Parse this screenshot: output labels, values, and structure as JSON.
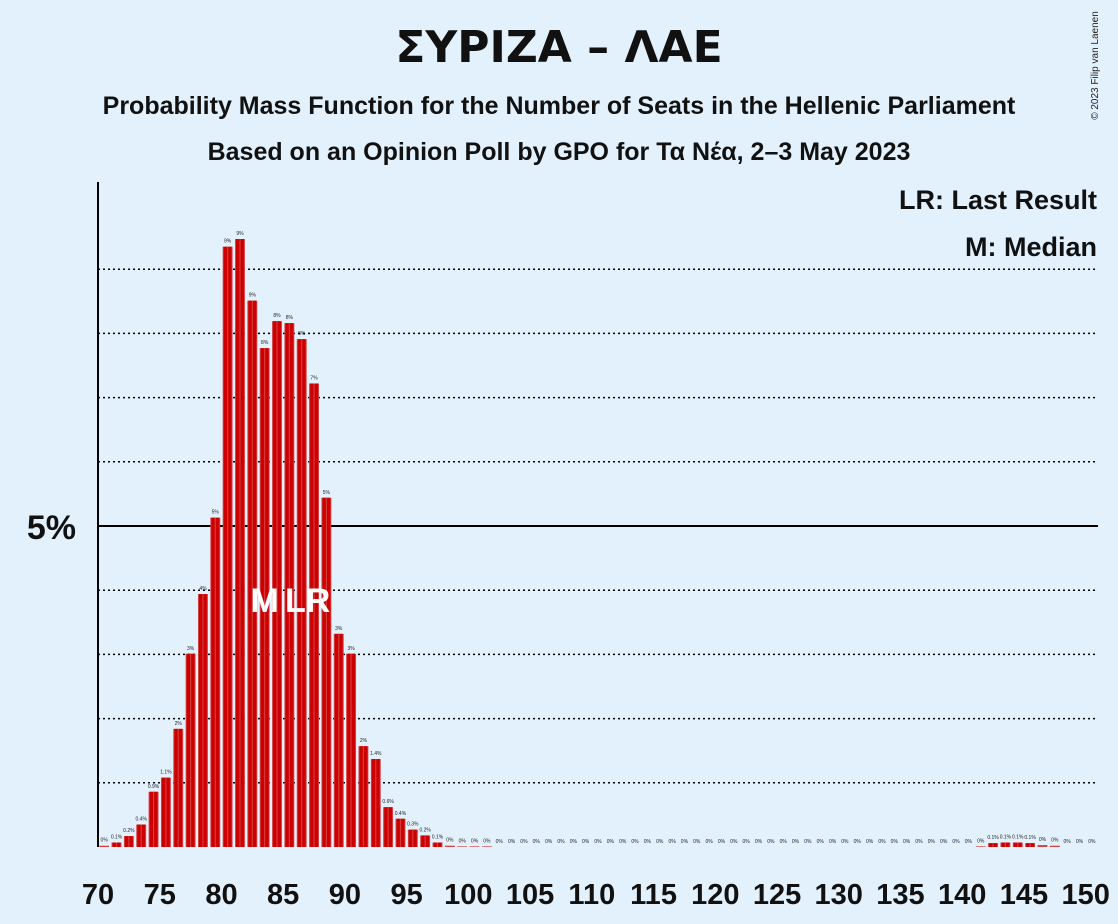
{
  "title": "ΣΥΡΙΖΑ – ΛΑΕ",
  "subtitle1": "Probability Mass Function for the Number of Seats in the Hellenic Parliament",
  "subtitle2": "Based on an Opinion Poll by GPO for Τα Νέα, 2–3 May 2023",
  "copyright": "© 2023 Filip van Laenen",
  "chart_data": {
    "type": "bar",
    "x": [
      70,
      71,
      72,
      73,
      74,
      75,
      76,
      77,
      78,
      79,
      80,
      81,
      82,
      83,
      84,
      85,
      86,
      87,
      88,
      89,
      90,
      91,
      92,
      93,
      94,
      95,
      96,
      97,
      98,
      99,
      100,
      101,
      102,
      103,
      104,
      105,
      106,
      107,
      108,
      109,
      110,
      111,
      112,
      113,
      114,
      115,
      116,
      117,
      118,
      119,
      120,
      121,
      122,
      123,
      124,
      125,
      126,
      127,
      128,
      129,
      130,
      131,
      132,
      133,
      134,
      135,
      136,
      137,
      138,
      139,
      140,
      141,
      142,
      143,
      144,
      145,
      146,
      147,
      148,
      149,
      150
    ],
    "values": [
      0,
      0.1,
      0.2,
      0.4,
      0.9,
      1.1,
      2,
      3,
      4,
      5,
      9,
      9,
      9,
      8,
      8,
      8,
      8,
      7,
      5,
      3,
      3,
      2,
      1.4,
      0.6,
      0.4,
      0.3,
      0.2,
      0.1,
      0,
      0,
      0,
      0,
      0,
      0,
      0,
      0,
      0,
      0,
      0,
      0,
      0,
      0,
      0,
      0,
      0,
      0,
      0,
      0,
      0,
      0,
      0,
      0,
      0,
      0,
      0,
      0,
      0,
      0,
      0,
      0,
      0,
      0,
      0,
      0,
      0,
      0,
      0,
      0,
      0,
      0,
      0,
      0,
      0.1,
      0.1,
      0.1,
      0.1,
      0,
      0,
      0,
      0,
      0
    ],
    "plot_values": [
      0.02,
      0.07,
      0.17,
      0.35,
      0.86,
      1.08,
      1.84,
      3.01,
      3.94,
      5.13,
      9.35,
      9.47,
      8.51,
      7.77,
      8.19,
      8.16,
      7.91,
      7.22,
      5.44,
      3.32,
      3.01,
      1.57,
      1.37,
      0.62,
      0.44,
      0.27,
      0.18,
      0.07,
      0.02,
      0.01,
      0.01,
      0.01,
      0,
      0,
      0,
      0,
      0,
      0,
      0,
      0,
      0,
      0,
      0,
      0,
      0,
      0,
      0,
      0,
      0,
      0,
      0,
      0,
      0,
      0,
      0,
      0,
      0,
      0,
      0,
      0,
      0,
      0,
      0,
      0,
      0,
      0,
      0,
      0,
      0,
      0,
      0,
      0.01,
      0.06,
      0.07,
      0.07,
      0.06,
      0.03,
      0.02,
      0,
      0,
      0
    ],
    "bar_labels": [
      "0%",
      "0.1%",
      "0.2%",
      "0.4%",
      "0.9%",
      "1.1%",
      "2%",
      "3%",
      "4%",
      "5%",
      "9%",
      "9%",
      "9%",
      "8%",
      "8%",
      "8%",
      "8%",
      "7%",
      "5%",
      "3%",
      "3%",
      "2%",
      "1.4%",
      "0.6%",
      "0.4%",
      "0.3%",
      "0.2%",
      "0.1%",
      "0%",
      "0%",
      "0%",
      "0%",
      "0%",
      "0%",
      "0%",
      "0%",
      "0%",
      "0%",
      "0%",
      "0%",
      "0%",
      "0%",
      "0%",
      "0%",
      "0%",
      "0%",
      "0%",
      "0%",
      "0%",
      "0%",
      "0%",
      "0%",
      "0%",
      "0%",
      "0%",
      "0%",
      "0%",
      "0%",
      "0%",
      "0%",
      "0%",
      "0%",
      "0%",
      "0%",
      "0%",
      "0%",
      "0%",
      "0%",
      "0%",
      "0%",
      "0%",
      "0%",
      "0.1%",
      "0.1%",
      "0.1%",
      "0.1%",
      "0%",
      "0%",
      "0%",
      "0%",
      "0%"
    ],
    "x_ticks": [
      70,
      75,
      80,
      85,
      90,
      95,
      100,
      105,
      110,
      115,
      120,
      125,
      130,
      135,
      140,
      145,
      150
    ],
    "y_tick_label": "5%",
    "y_tick_value": 5,
    "ylim": [
      0,
      10.3
    ],
    "grid": "dotted horizontal every 1%",
    "median": 83,
    "median_marker": "M",
    "last_result": 86,
    "last_result_marker": "LR",
    "legend": [
      "LR: Last Result",
      "M: Median"
    ],
    "legend_position": "top-right",
    "colors": {
      "bar_main": "#cc0000",
      "bar_stripe": "#d63a3a",
      "bar_minor": "#d24040",
      "background": "#e3f1fd"
    }
  }
}
